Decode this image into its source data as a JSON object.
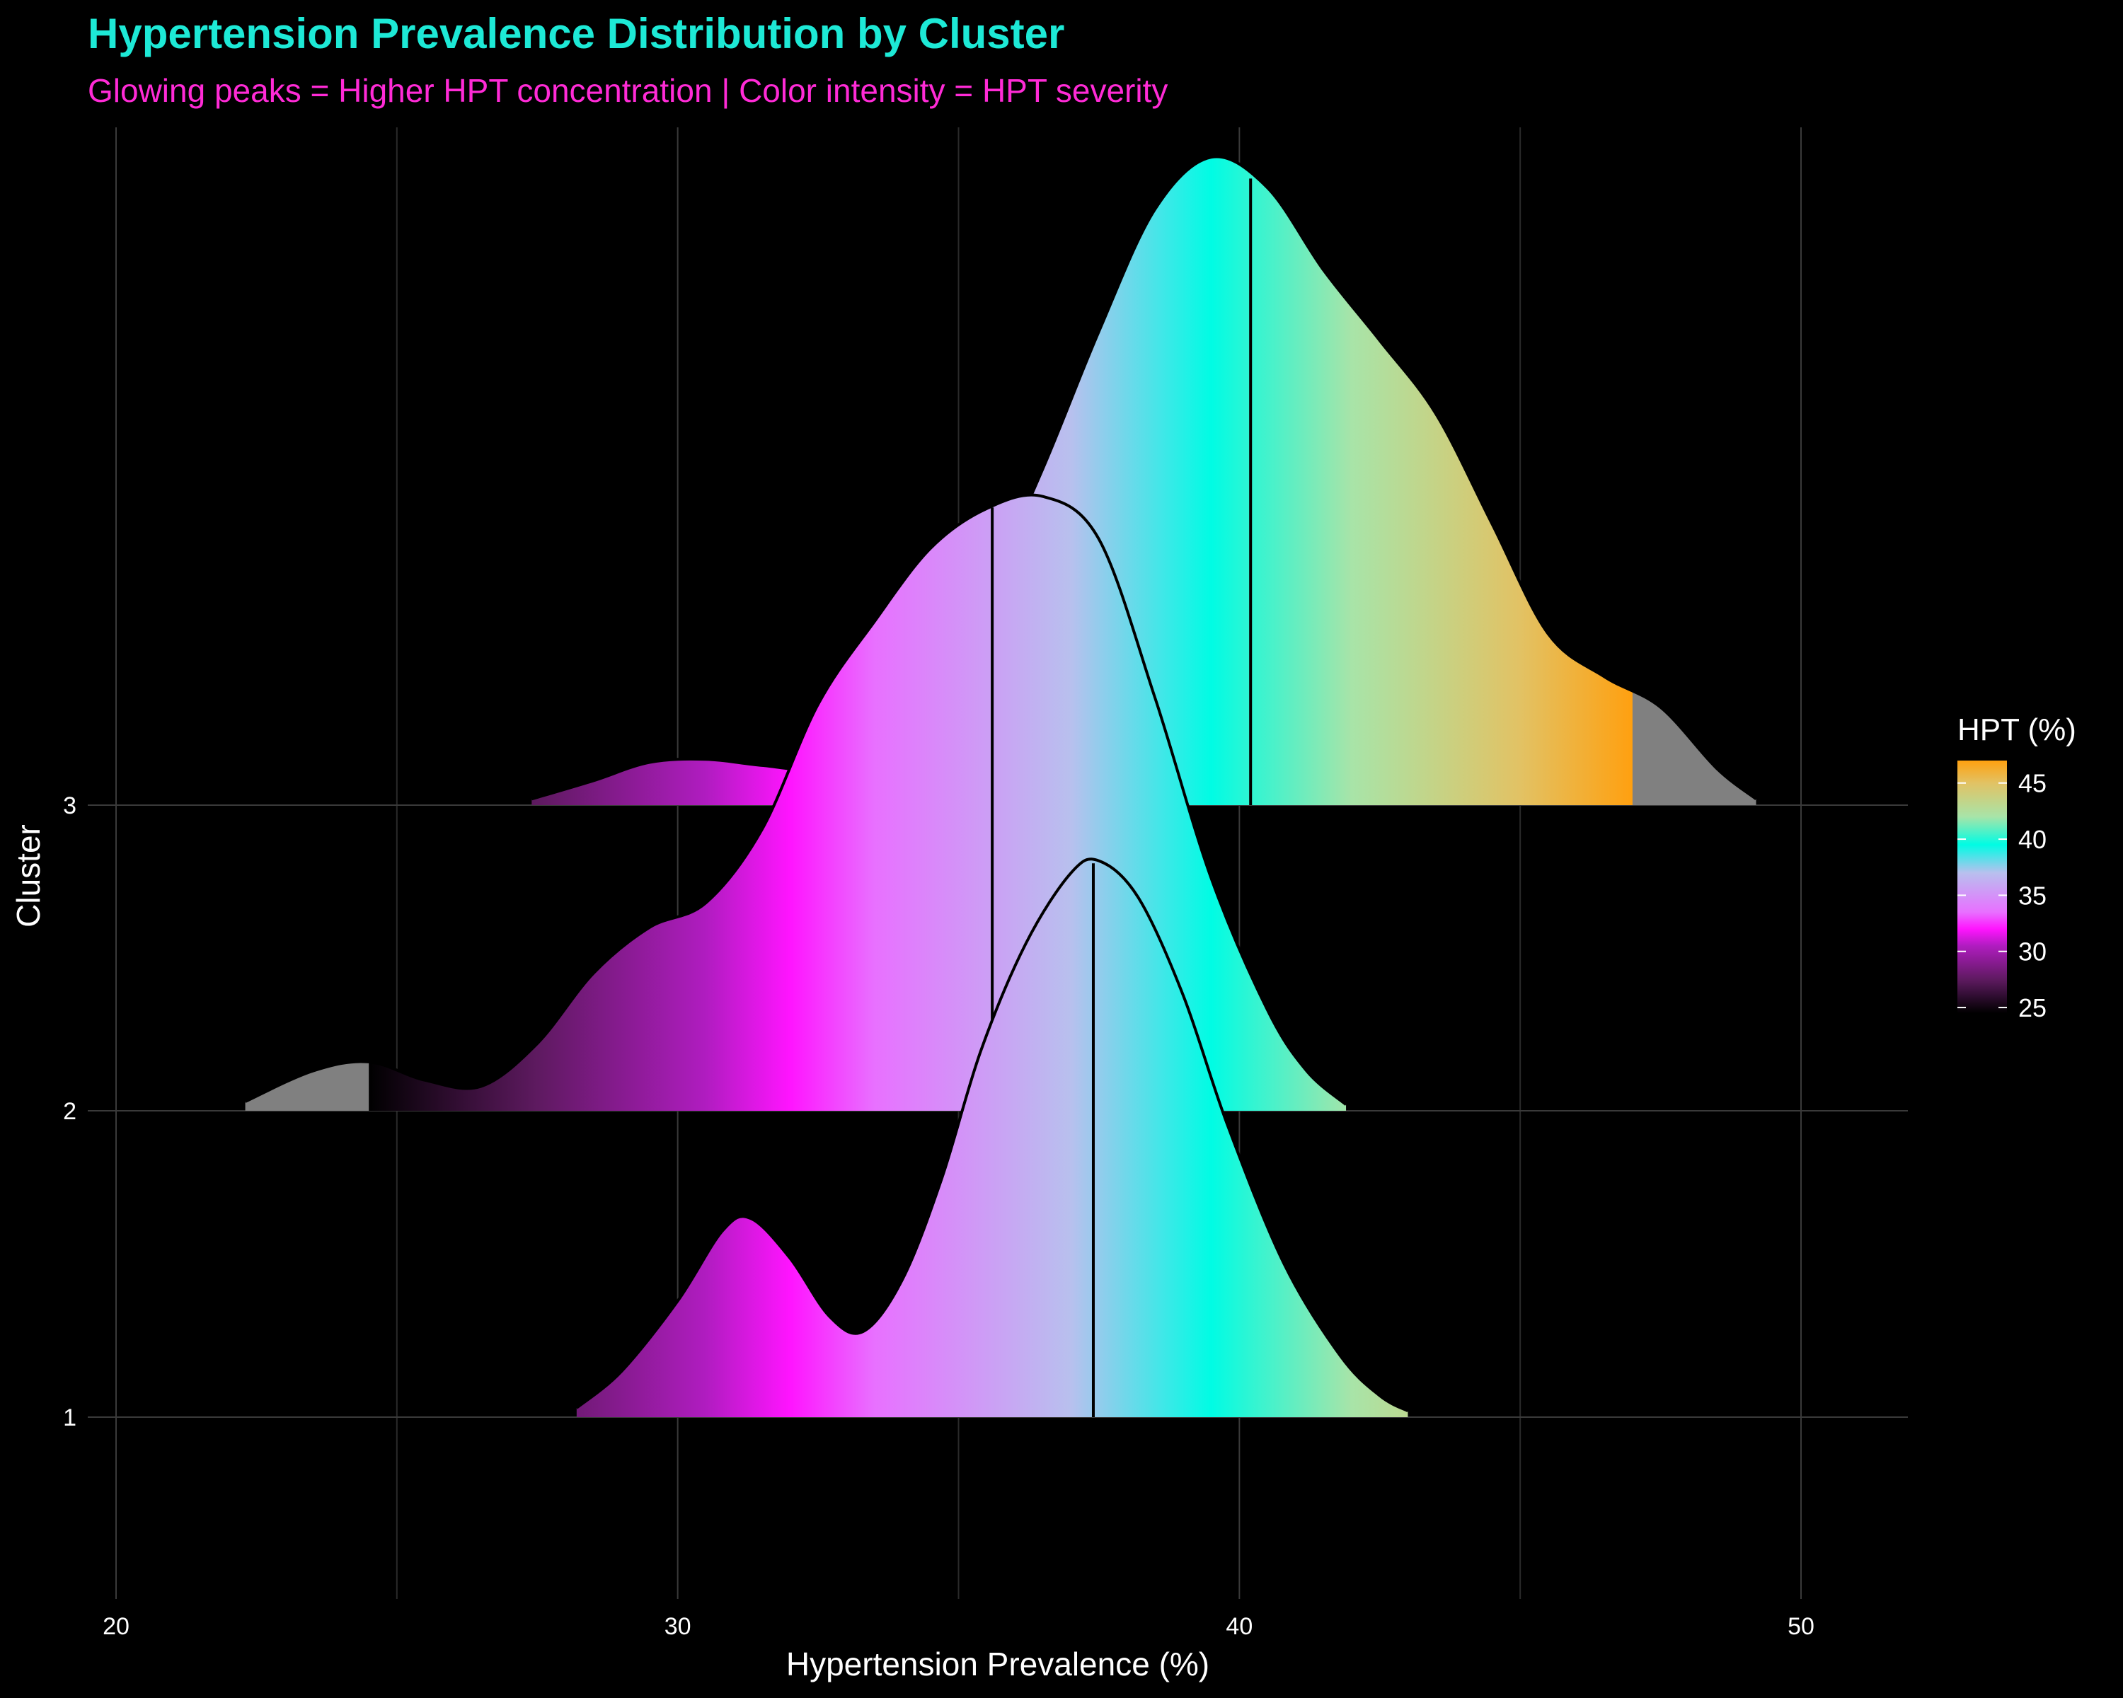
{
  "chart_data": {
    "type": "ridgeline",
    "title": "Hypertension Prevalence Distribution by Cluster",
    "subtitle": "Glowing peaks = Higher HPT concentration | Color intensity = HPT severity",
    "xlabel": "Hypertension Prevalence (%)",
    "ylabel": "Cluster",
    "xlim": [
      20,
      52
    ],
    "x_ticks": [
      20,
      30,
      40,
      50
    ],
    "categories": [
      "1",
      "2",
      "3"
    ],
    "grid": true,
    "legend": {
      "title": "HPT (%)",
      "position": "right",
      "ticks": [
        45,
        40,
        35,
        30,
        25
      ],
      "range": [
        24.5,
        47
      ],
      "colors": [
        {
          "v": 24.5,
          "c": "#000000"
        },
        {
          "v": 27.5,
          "c": "#5e1a60"
        },
        {
          "v": 30.5,
          "c": "#b01cc0"
        },
        {
          "v": 32,
          "c": "#ff14ff"
        },
        {
          "v": 33.5,
          "c": "#e870ff"
        },
        {
          "v": 37,
          "c": "#b8c0ee"
        },
        {
          "v": 39.5,
          "c": "#00fce4"
        },
        {
          "v": 42,
          "c": "#a8e4a8"
        },
        {
          "v": 45,
          "c": "#e2c264"
        },
        {
          "v": 47,
          "c": "#ffa010"
        }
      ],
      "na_color": "#808080"
    },
    "series": [
      {
        "name": "1",
        "x": [
          28.2,
          29,
          30,
          30.8,
          31.3,
          32,
          32.7,
          33.3,
          34,
          34.7,
          35.4,
          36.2,
          37,
          37.5,
          38.2,
          39,
          39.8,
          40.8,
          41.8,
          42.5,
          43
        ],
        "density": [
          0.03,
          0.15,
          0.38,
          0.61,
          0.65,
          0.52,
          0.33,
          0.28,
          0.45,
          0.78,
          1.2,
          1.55,
          1.78,
          1.82,
          1.7,
          1.38,
          0.95,
          0.5,
          0.2,
          0.07,
          0.02
        ],
        "median": 37.4
      },
      {
        "name": "2",
        "x": [
          22.3,
          23.5,
          24.5,
          25.5,
          26.5,
          27.5,
          28.5,
          29.5,
          30.5,
          31.5,
          32.5,
          33.5,
          34.5,
          35.5,
          36.5,
          37.5,
          38.5,
          39.5,
          40.5,
          41.2,
          41.9
        ],
        "density": [
          0.03,
          0.13,
          0.16,
          0.1,
          0.08,
          0.22,
          0.45,
          0.6,
          0.68,
          0.92,
          1.33,
          1.6,
          1.84,
          1.97,
          2.01,
          1.87,
          1.35,
          0.76,
          0.33,
          0.13,
          0.02
        ],
        "median": 35.6
      },
      {
        "name": "3",
        "x": [
          27.4,
          28.5,
          29.5,
          30.5,
          31.5,
          32.5,
          33.5,
          34.5,
          35.5,
          36.5,
          37.5,
          38.5,
          39.5,
          40.5,
          41.5,
          42.5,
          43.5,
          44.5,
          45.5,
          46.5,
          47.5,
          48.5,
          49.2
        ],
        "density": [
          0.02,
          0.08,
          0.14,
          0.15,
          0.13,
          0.12,
          0.2,
          0.4,
          0.7,
          1.1,
          1.55,
          1.95,
          2.12,
          2.02,
          1.75,
          1.52,
          1.28,
          0.92,
          0.56,
          0.42,
          0.32,
          0.12,
          0.02
        ],
        "median": 40.2
      }
    ]
  }
}
